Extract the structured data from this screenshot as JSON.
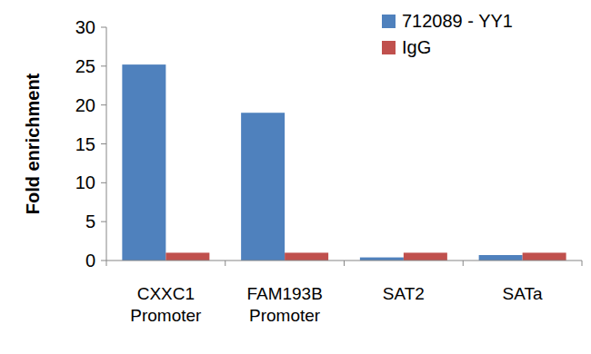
{
  "chart_data": {
    "type": "bar",
    "y_label": "Fold enrichment",
    "categories": [
      "CXXC1 Promoter",
      "FAM193B Promoter",
      "SAT2",
      "SATa"
    ],
    "series": [
      {
        "name": "712089 - YY1",
        "color": "#4f81bd",
        "values": [
          25.2,
          19,
          0.4,
          0.7
        ]
      },
      {
        "name": "IgG",
        "color": "#c0504d",
        "values": [
          1,
          1,
          1,
          1
        ]
      }
    ],
    "ylim": [
      0,
      30
    ],
    "yticks": [
      0,
      5,
      10,
      15,
      20,
      25,
      30
    ],
    "grid": false,
    "legend": "top-right"
  }
}
